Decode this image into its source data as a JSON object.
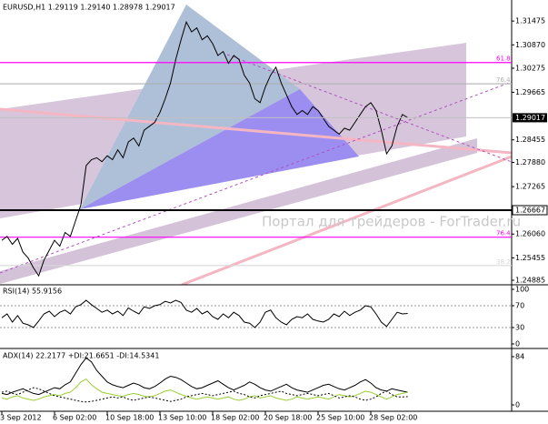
{
  "chart_data": [
    {
      "type": "line",
      "title": "EURUSD,H1 1.29119 1.29140 1.28978 1.29017",
      "ylim": [
        1.2477,
        1.3201
      ],
      "yticks": [
        1.31475,
        {
          "value": 1.3087,
          "label": "1.30870"
        },
        1.30275,
        1.29665,
        1.28455,
        {
          "value": 1.2788,
          "label": "1.27880"
        },
        1.27265,
        {
          "value": 1.2606,
          "label": "1.26060"
        },
        1.25455,
        1.24885
      ],
      "current_price": 1.29017,
      "hline": 1.26667,
      "fib_levels": [
        {
          "price": 1.3042,
          "label": "61.8",
          "color": "#ff00ff"
        },
        {
          "price": 1.2988,
          "label": "76.4",
          "color": "#b0b0b0"
        },
        {
          "price": 1.2598,
          "label": "76.4",
          "color": "#ff00ff"
        },
        {
          "price": 1.2526,
          "label": "38.2",
          "color": "#d8d8d8"
        }
      ],
      "watermark": "Портал для трейдеров - ForTrader.ru",
      "series": [
        {
          "name": "EURUSD",
          "color": "#000000",
          "values": [
            1.259,
            1.26,
            1.258,
            1.2595,
            1.256,
            1.2545,
            1.252,
            1.25,
            1.254,
            1.2565,
            1.259,
            1.2575,
            1.261,
            1.26,
            1.264,
            1.268,
            1.278,
            1.2795,
            1.28,
            1.279,
            1.2805,
            1.2795,
            1.282,
            1.28,
            1.284,
            1.285,
            1.283,
            1.287,
            1.288,
            1.289,
            1.2915,
            1.295,
            1.299,
            1.305,
            1.31,
            1.3145,
            1.312,
            1.313,
            1.31,
            1.311,
            1.309,
            1.306,
            1.307,
            1.304,
            1.306,
            1.305,
            1.301,
            1.299,
            1.295,
            1.294,
            1.298,
            1.301,
            1.303,
            1.299,
            1.296,
            1.293,
            1.291,
            1.292,
            1.291,
            1.293,
            1.292,
            1.29,
            1.288,
            1.287,
            1.286,
            1.2875,
            1.287,
            1.289,
            1.291,
            1.293,
            1.294,
            1.292,
            1.287,
            1.281,
            1.283,
            1.288,
            1.291,
            1.2902
          ]
        }
      ]
    },
    {
      "type": "line",
      "title": "RSI(14) 55.9156",
      "ylim": [
        0,
        100
      ],
      "yticks": [
        100,
        70,
        30,
        0
      ],
      "levels": [
        70,
        30
      ],
      "series": [
        {
          "name": "RSI",
          "color": "#000000",
          "values": [
            48,
            55,
            40,
            52,
            38,
            35,
            30,
            42,
            55,
            60,
            50,
            58,
            62,
            55,
            68,
            72,
            80,
            72,
            65,
            58,
            62,
            55,
            60,
            52,
            66,
            60,
            55,
            68,
            65,
            70,
            72,
            78,
            75,
            80,
            76,
            62,
            58,
            65,
            55,
            60,
            50,
            45,
            55,
            48,
            58,
            52,
            40,
            38,
            30,
            40,
            58,
            62,
            48,
            40,
            35,
            45,
            50,
            48,
            55,
            45,
            42,
            40,
            45,
            55,
            50,
            60,
            52,
            58,
            62,
            70,
            68,
            55,
            40,
            32,
            45,
            58,
            55,
            55.9
          ]
        }
      ]
    },
    {
      "type": "line",
      "title": "ADX(14) 22.2177 +DI:21.6651 -DI:14.5341",
      "ylim": [
        0,
        84
      ],
      "yticks": [
        84,
        0
      ],
      "categories": [
        "3 Sep 2012",
        null,
        null,
        null,
        null,
        null,
        null,
        null,
        null,
        null,
        "6 Sep 02:00",
        null,
        null,
        null,
        null,
        null,
        null,
        null,
        null,
        null,
        "10 Sep 18:00",
        null,
        null,
        null,
        null,
        null,
        null,
        null,
        null,
        null,
        "13 Sep 10:00",
        null,
        null,
        null,
        null,
        null,
        null,
        null,
        null,
        null,
        "18 Sep 02:00",
        null,
        null,
        null,
        null,
        null,
        null,
        null,
        null,
        null,
        "20 Sep 18:00",
        null,
        null,
        null,
        null,
        null,
        null,
        null,
        null,
        null,
        "25 Sep 10:00",
        null,
        null,
        null,
        null,
        null,
        null,
        null,
        null,
        null,
        "28 Sep 02:00",
        null,
        null,
        null,
        null,
        null,
        null,
        null
      ],
      "series": [
        {
          "name": "ADX",
          "color": "#000000",
          "style": "solid",
          "values": [
            20,
            18,
            22,
            25,
            28,
            24,
            20,
            18,
            22,
            26,
            30,
            28,
            35,
            40,
            55,
            70,
            82,
            75,
            60,
            50,
            40,
            35,
            32,
            30,
            34,
            38,
            35,
            30,
            28,
            32,
            38,
            45,
            50,
            48,
            44,
            38,
            32,
            28,
            30,
            34,
            38,
            42,
            36,
            30,
            26,
            30,
            34,
            40,
            36,
            30,
            26,
            24,
            28,
            32,
            36,
            30,
            26,
            24,
            22,
            26,
            30,
            34,
            36,
            32,
            28,
            26,
            30,
            34,
            40,
            44,
            38,
            30,
            26,
            24,
            28,
            26,
            24,
            22
          ]
        },
        {
          "name": "+DI",
          "color": "#9acd32",
          "style": "solid",
          "values": [
            12,
            10,
            14,
            16,
            12,
            10,
            8,
            10,
            14,
            16,
            18,
            16,
            20,
            22,
            30,
            40,
            45,
            35,
            28,
            22,
            20,
            18,
            16,
            15,
            18,
            20,
            18,
            15,
            14,
            16,
            20,
            24,
            26,
            22,
            18,
            15,
            12,
            10,
            12,
            14,
            12,
            10,
            12,
            14,
            10,
            8,
            10,
            14,
            16,
            12,
            14,
            16,
            12,
            10,
            8,
            10,
            14,
            12,
            10,
            12,
            14,
            12,
            10,
            14,
            18,
            16,
            14,
            16,
            20,
            24,
            22,
            18,
            14,
            10,
            14,
            18,
            20,
            21.7
          ]
        },
        {
          "name": "-DI",
          "color": "#000000",
          "style": "dashed",
          "values": [
            22,
            24,
            20,
            18,
            22,
            26,
            30,
            28,
            24,
            20,
            16,
            14,
            12,
            10,
            8,
            6,
            5,
            6,
            8,
            10,
            12,
            14,
            12,
            14,
            10,
            8,
            10,
            12,
            14,
            12,
            10,
            8,
            6,
            8,
            10,
            14,
            16,
            18,
            20,
            18,
            16,
            18,
            20,
            22,
            24,
            20,
            18,
            14,
            12,
            16,
            18,
            20,
            22,
            24,
            20,
            18,
            16,
            18,
            20,
            18,
            16,
            18,
            20,
            16,
            12,
            14,
            16,
            14,
            10,
            8,
            10,
            14,
            20,
            24,
            18,
            14,
            14,
            14.5
          ]
        }
      ]
    }
  ]
}
